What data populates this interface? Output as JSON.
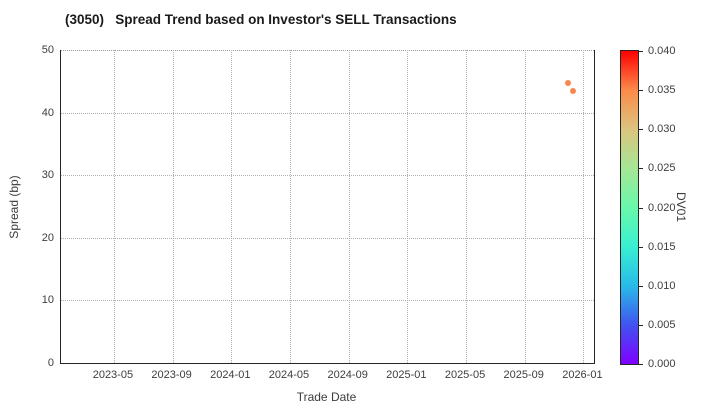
{
  "title": "(3050)   Spread Trend based on Investor's SELL Transactions",
  "chart_data": {
    "type": "scatter",
    "title": "(3050)   Spread Trend based on Investor's SELL Transactions",
    "xlabel": "Trade Date",
    "ylabel": "Spread (bp)",
    "x_tick_labels": [
      "2023-05",
      "2023-09",
      "2024-01",
      "2024-05",
      "2024-09",
      "2025-01",
      "2025-05",
      "2025-09",
      "2026-01"
    ],
    "y_tick_labels": [
      0,
      10,
      20,
      30,
      40,
      50
    ],
    "ylim": [
      0,
      50
    ],
    "xlim": [
      "2023-01-13",
      "2026-01-23"
    ],
    "grid": true,
    "grid_style": "dotted",
    "points": [
      {
        "date": "2025-11-29",
        "spread_bp": 44.7,
        "dv01": 0.034,
        "color": "#f8874c"
      },
      {
        "date": "2025-12-09",
        "spread_bp": 43.4,
        "dv01": 0.033,
        "color": "#f8884e"
      }
    ],
    "colorbar": {
      "label": "DV01",
      "min": 0.0,
      "max": 0.04,
      "tick_labels": [
        "0.040",
        "0.035",
        "0.030",
        "0.025",
        "0.020",
        "0.015",
        "0.010",
        "0.005",
        "0.000"
      ],
      "gradient_top_to_bottom": [
        "#ff0000",
        "#fc8a49",
        "#dcc47f",
        "#a5e795",
        "#69f8ab",
        "#39efd2",
        "#28bbe8",
        "#4153f0",
        "#7f00ff"
      ]
    }
  }
}
